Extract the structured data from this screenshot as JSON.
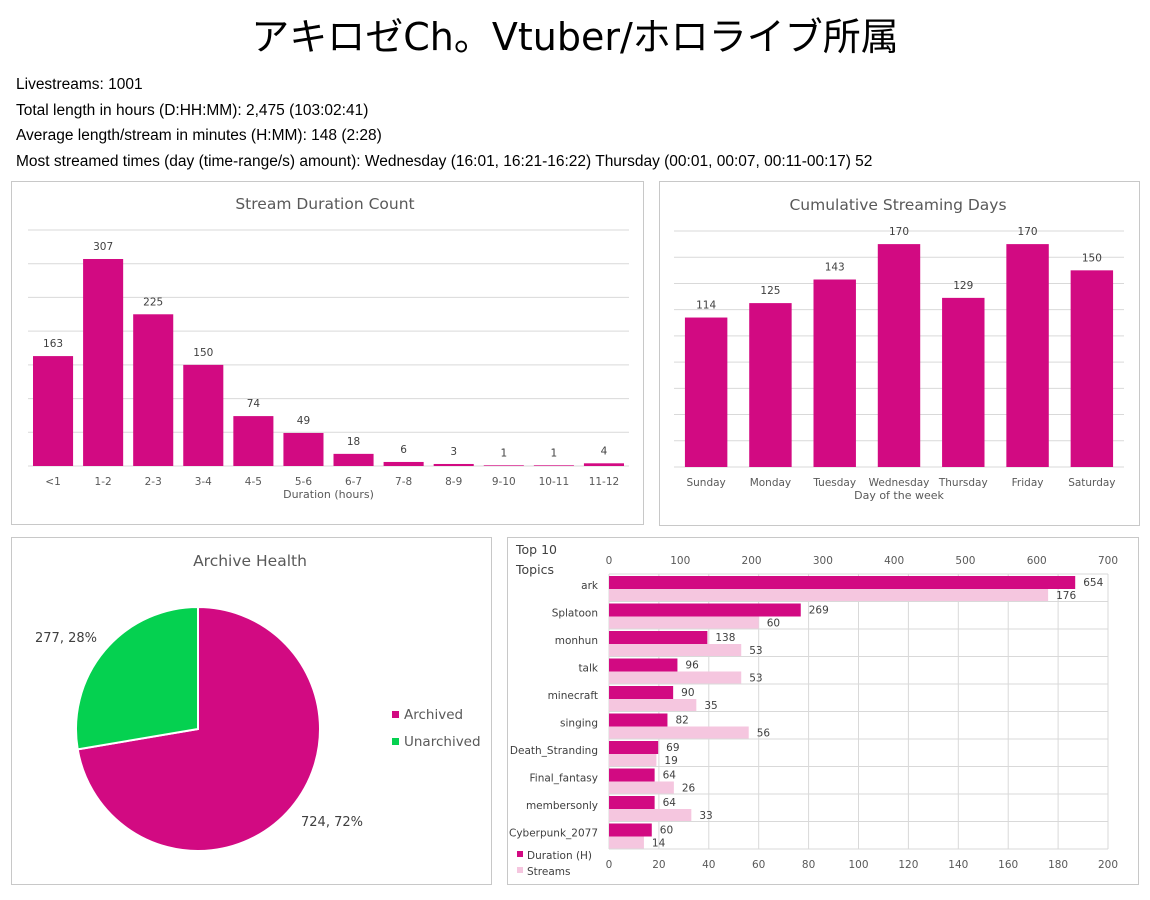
{
  "page": {
    "title": "アキロゼCh。Vtuber/ホロライブ所属",
    "stats": [
      "Livestreams: 1001",
      "Total length in hours (D:HH:MM): 2,475 (103:02:41)",
      "Average length/stream in minutes (H:MM): 148 (2:28)",
      "Most streamed times (day (time-range/s) amount): Wednesday (16:01, 16:21-16:22) Thursday (00:01, 00:07, 00:11-00:17) 52"
    ]
  },
  "colors": {
    "primary": "#d20a82",
    "secondary": "#f5c6df",
    "green": "#05d150",
    "grid": "#d9d9d9"
  },
  "chart_data": [
    {
      "type": "bar",
      "title": "Stream Duration Count",
      "xlabel": "Duration (hours)",
      "ylabel": "",
      "categories": [
        "<1",
        "1-2",
        "2-3",
        "3-4",
        "4-5",
        "5-6",
        "6-7",
        "7-8",
        "8-9",
        "9-10",
        "10-11",
        "11-12"
      ],
      "values": [
        163,
        307,
        225,
        150,
        74,
        49,
        18,
        6,
        3,
        1,
        1,
        4
      ],
      "ylim": [
        0,
        350
      ],
      "grid": true
    },
    {
      "type": "bar",
      "title": "Cumulative Streaming Days",
      "xlabel": "Day of the week",
      "ylabel": "",
      "categories": [
        "Sunday",
        "Monday",
        "Tuesday",
        "Wednesday",
        "Thursday",
        "Friday",
        "Saturday"
      ],
      "values": [
        114,
        125,
        143,
        170,
        129,
        170,
        150
      ],
      "ylim": [
        0,
        180
      ],
      "grid": true
    },
    {
      "type": "pie",
      "title": "Archive Health",
      "labels": [
        "Archived",
        "Unarchived"
      ],
      "values": [
        724,
        277
      ],
      "data_labels": [
        "724, 72%",
        "277, 28%"
      ],
      "legend": "right"
    },
    {
      "type": "bar",
      "orientation": "horizontal",
      "title": "Top 10 Topics",
      "categories": [
        "ark",
        "Splatoon",
        "monhun",
        "talk",
        "minecraft",
        "singing",
        "Death_Stranding",
        "Final_fantasy",
        "membersonly",
        "Cyberpunk_2077"
      ],
      "series": [
        {
          "name": "Duration (H)",
          "axis": "top",
          "values": [
            654,
            269,
            138,
            96,
            90,
            82,
            69,
            64,
            64,
            60
          ]
        },
        {
          "name": "Streams",
          "axis": "bottom",
          "values": [
            176,
            60,
            53,
            53,
            35,
            56,
            19,
            26,
            33,
            14
          ]
        }
      ],
      "top_axis": {
        "ticks": [
          0,
          100,
          200,
          300,
          400,
          500,
          600,
          700
        ],
        "range": [
          0,
          700
        ]
      },
      "bottom_axis": {
        "ticks": [
          0,
          20,
          40,
          60,
          80,
          100,
          120,
          140,
          160,
          180,
          200
        ],
        "range": [
          0,
          200
        ]
      },
      "legend": "bottom-left",
      "grid": true
    }
  ]
}
